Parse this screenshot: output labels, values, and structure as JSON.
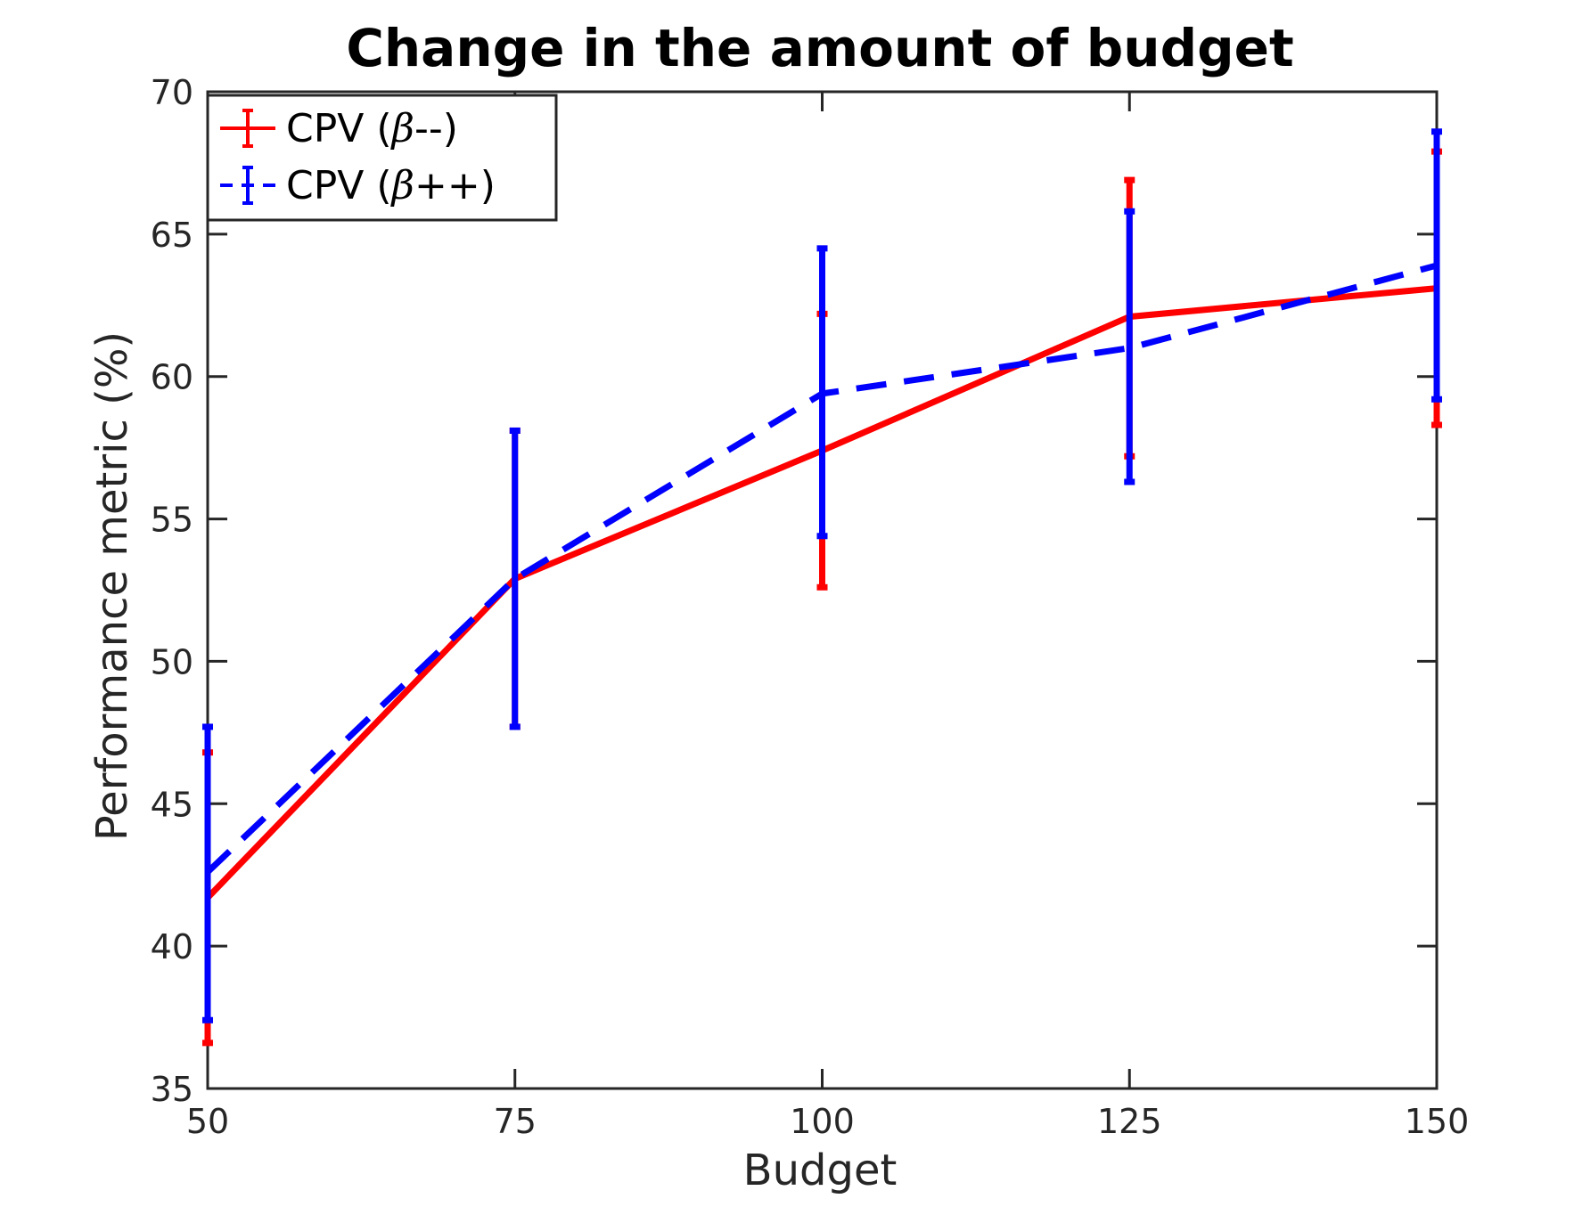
{
  "chart_data": {
    "type": "line",
    "title": "Change in the amount of budget",
    "xlabel": "Budget",
    "ylabel": "Performance metric (%)",
    "x": [
      50,
      75,
      100,
      125,
      150
    ],
    "xlim": [
      50,
      150
    ],
    "ylim": [
      35,
      70
    ],
    "xticks": [
      "50",
      "75",
      "100",
      "125",
      "150"
    ],
    "yticks": [
      "35",
      "40",
      "45",
      "50",
      "55",
      "60",
      "65",
      "70"
    ],
    "xtick_values": [
      50,
      75,
      100,
      125,
      150
    ],
    "ytick_values": [
      35,
      40,
      45,
      50,
      55,
      60,
      65,
      70
    ],
    "grid": false,
    "legend_position": "top-left",
    "series": [
      {
        "name": "CPV (β--)",
        "label_prefix": "CPV (",
        "label_symbol": "β",
        "label_suffix": "--)",
        "color": "#ff0000",
        "line_style": "solid",
        "values": [
          41.7,
          52.9,
          57.4,
          62.1,
          63.1
        ],
        "err_low": [
          36.6,
          47.7,
          52.6,
          57.2,
          58.3
        ],
        "err_high": [
          46.8,
          58.1,
          62.2,
          66.9,
          67.9
        ]
      },
      {
        "name": "CPV (β++)",
        "label_prefix": "CPV (",
        "label_symbol": "β",
        "label_suffix": "++)",
        "color": "#0000ff",
        "line_style": "dashed",
        "values": [
          42.6,
          52.9,
          59.4,
          61.0,
          63.9
        ],
        "err_low": [
          37.4,
          47.7,
          54.4,
          56.3,
          59.2
        ],
        "err_high": [
          47.7,
          58.1,
          64.5,
          65.8,
          68.6
        ]
      }
    ]
  }
}
